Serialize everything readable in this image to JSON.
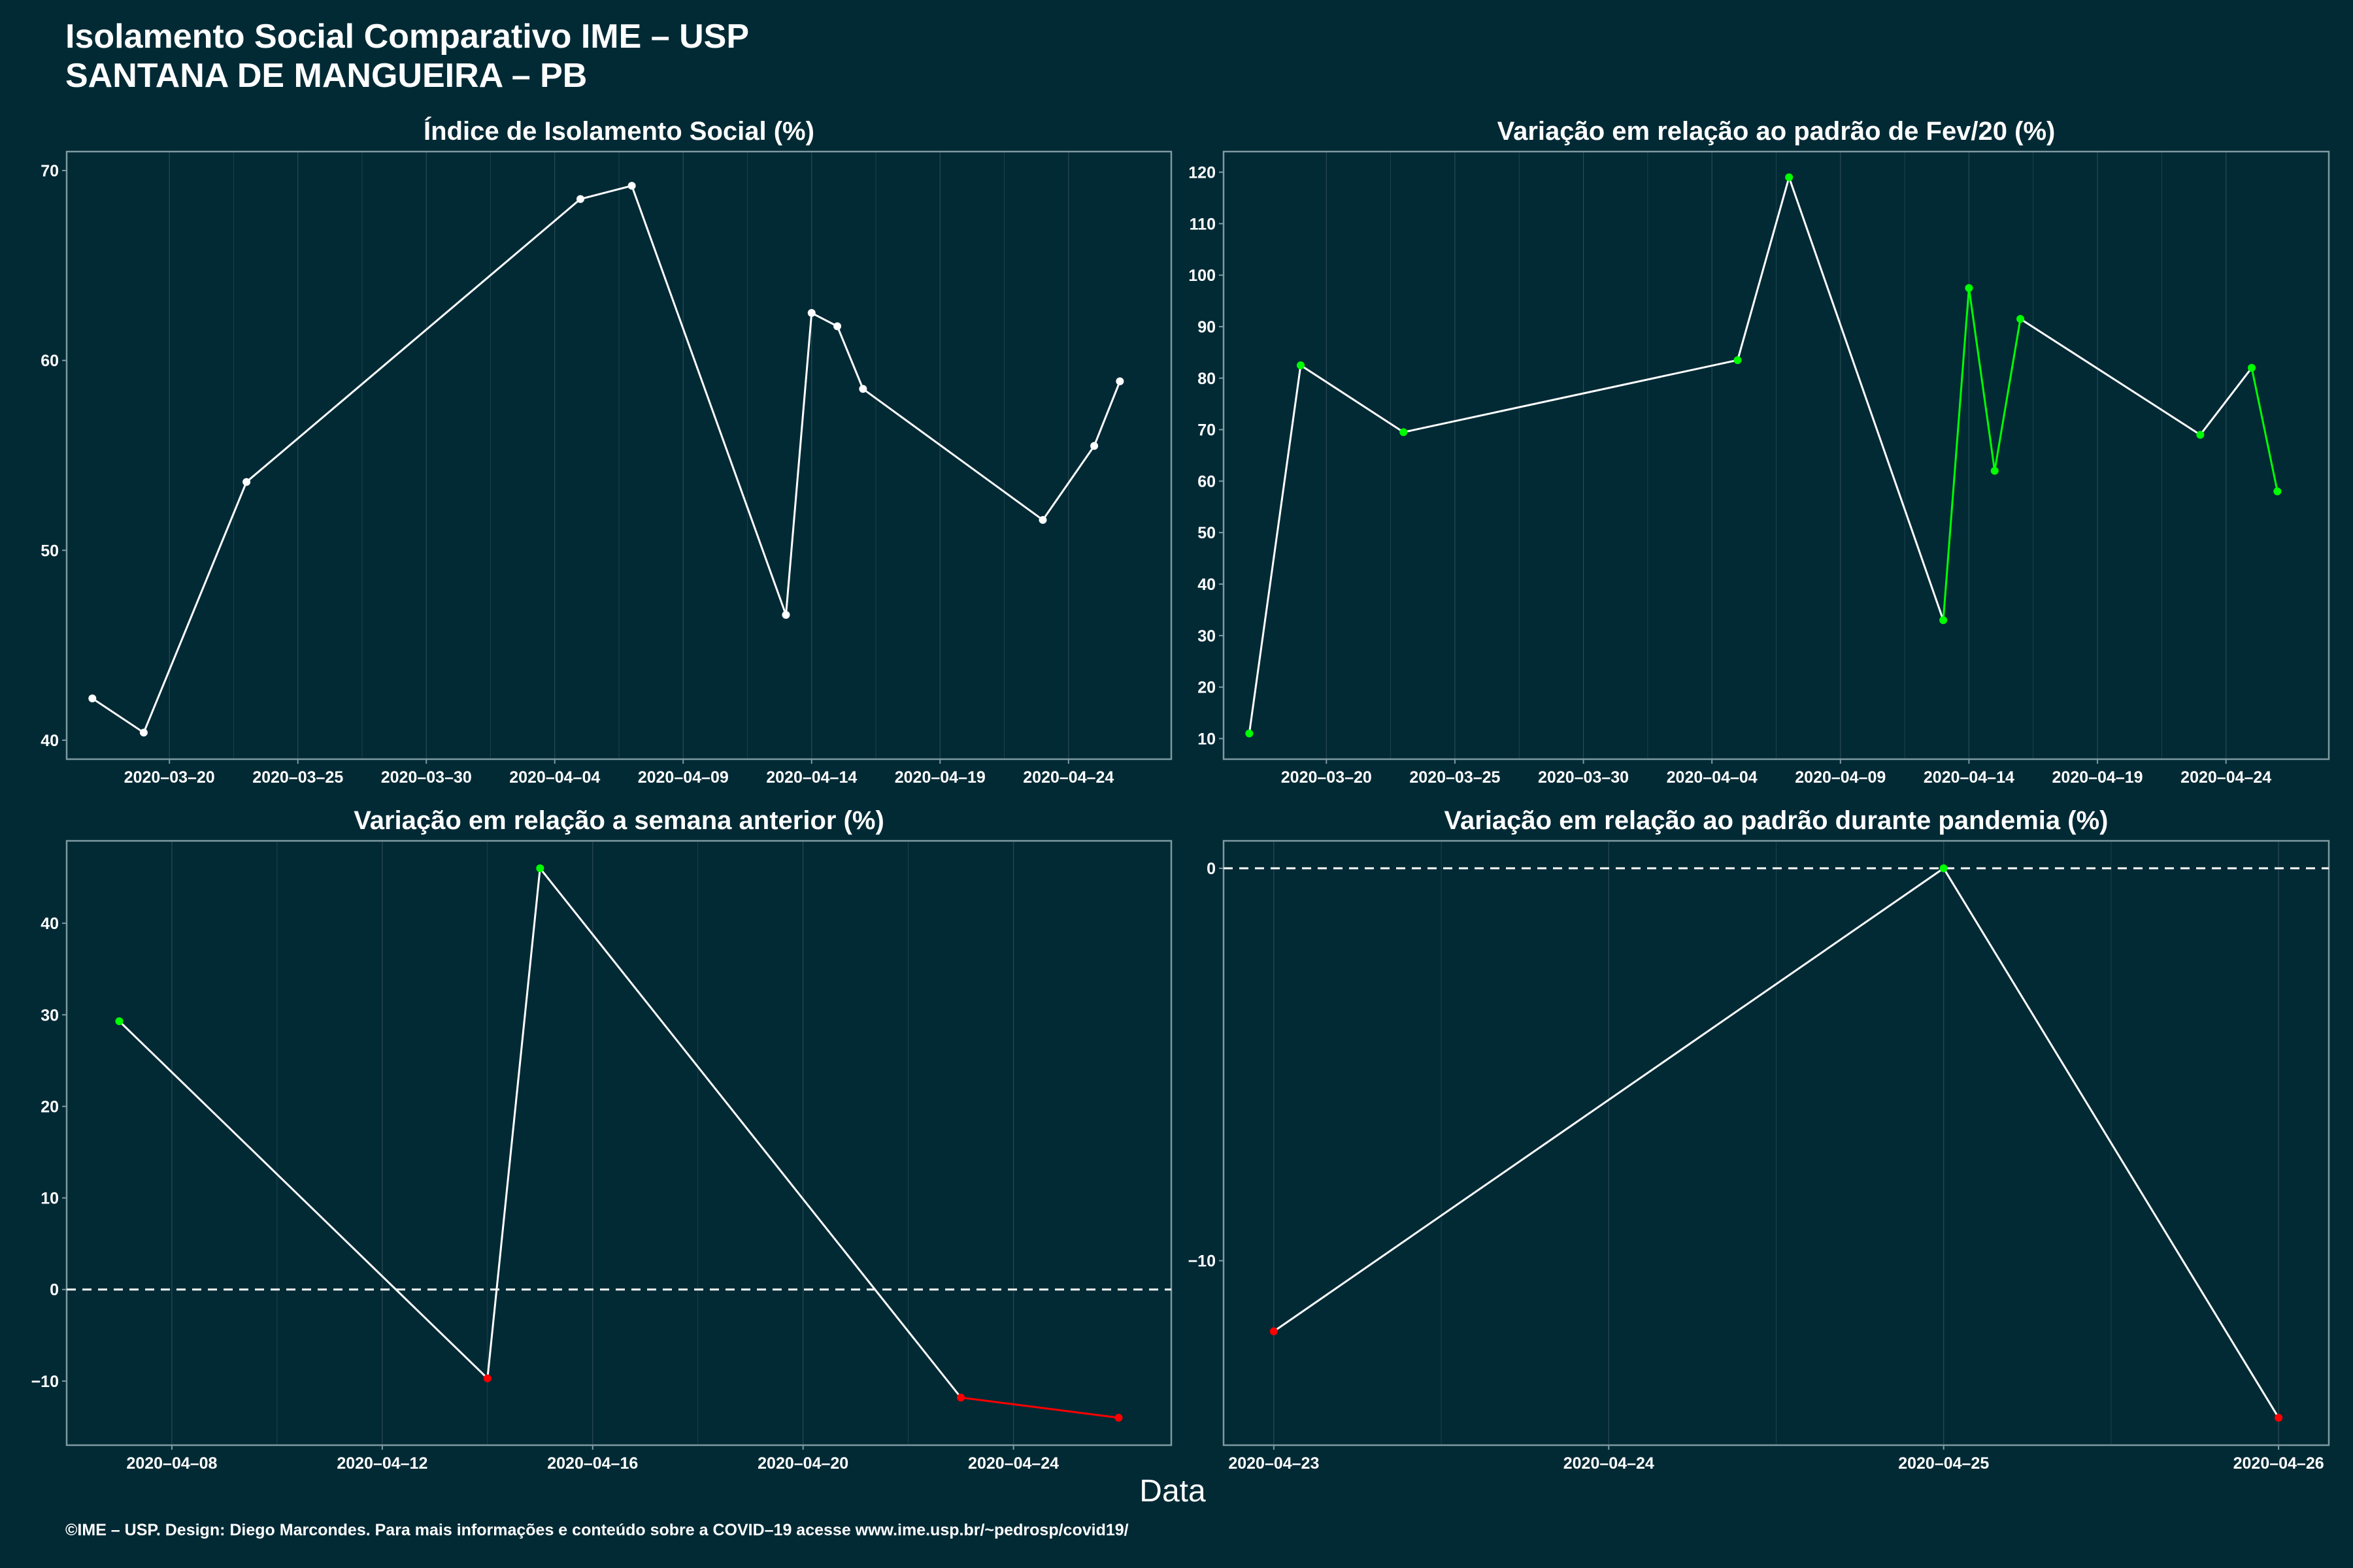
{
  "header": {
    "title_line1": "Isolamento Social Comparativo IME – USP",
    "title_line2": "SANTANA DE MANGUEIRA – PB"
  },
  "footer": {
    "credit": "©IME – USP. Design: Diego Marcondes. Para mais informações e conteúdo sobre a COVID–19 acesse www.ime.usp.br/~pedrosp/covid19/",
    "xlabel": "Data"
  },
  "colors": {
    "background": "#022a35",
    "line": "#ffffff",
    "up": "#00ff00",
    "down": "#ff0000",
    "frame": "#7f9aa1",
    "grid": "#2a4a55"
  },
  "chart_data": [
    {
      "type": "line",
      "title": "Índice de Isolamento Social (%)",
      "x": [
        "2020-03-17",
        "2020-03-19",
        "2020-03-23",
        "2020-04-05",
        "2020-04-07",
        "2020-04-13",
        "2020-04-14",
        "2020-04-15",
        "2020-04-16",
        "2020-04-23",
        "2020-04-25",
        "2020-04-26"
      ],
      "y": [
        42.2,
        40.4,
        53.6,
        68.5,
        69.2,
        46.6,
        62.5,
        61.8,
        58.5,
        51.6,
        55.5,
        58.9
      ],
      "ylim": [
        39,
        71
      ],
      "yticks": [
        40,
        50,
        60,
        70
      ],
      "xlim": [
        "2020-03-16",
        "2020-04-28"
      ],
      "xticks": [
        "2020-03-20",
        "2020-03-25",
        "2020-03-30",
        "2020-04-04",
        "2020-04-09",
        "2020-04-14",
        "2020-04-19",
        "2020-04-24"
      ],
      "point_color": "#ffffff",
      "dashed_zero": false
    },
    {
      "type": "line",
      "title": "Variação em relação ao padrão de Fev/20 (%)",
      "x": [
        "2020-03-17",
        "2020-03-19",
        "2020-03-23",
        "2020-04-05",
        "2020-04-07",
        "2020-04-13",
        "2020-04-14",
        "2020-04-15",
        "2020-04-16",
        "2020-04-23",
        "2020-04-25",
        "2020-04-26"
      ],
      "y": [
        11,
        82.5,
        69.5,
        83.5,
        119,
        33,
        97.5,
        62,
        91.5,
        69,
        82,
        58
      ],
      "ylim": [
        6,
        124
      ],
      "yticks": [
        10,
        20,
        30,
        40,
        50,
        60,
        70,
        80,
        90,
        100,
        110,
        120
      ],
      "xlim": [
        "2020-03-16",
        "2020-04-28"
      ],
      "xticks": [
        "2020-03-20",
        "2020-03-25",
        "2020-03-30",
        "2020-04-04",
        "2020-04-09",
        "2020-04-14",
        "2020-04-19",
        "2020-04-24"
      ],
      "point_color": "#00ff00",
      "dashed_zero": false
    },
    {
      "type": "line",
      "title": "Variação em relação a semana anterior (%)",
      "x": [
        "2020-04-07",
        "2020-04-14",
        "2020-04-15",
        "2020-04-23",
        "2020-04-26"
      ],
      "y": [
        29.3,
        -9.7,
        46,
        -11.8,
        -14
      ],
      "ylim": [
        -17,
        49
      ],
      "yticks": [
        -10,
        0,
        10,
        20,
        30,
        40
      ],
      "xlim": [
        "2020-04-06",
        "2020-04-27"
      ],
      "xticks": [
        "2020-04-08",
        "2020-04-12",
        "2020-04-16",
        "2020-04-20",
        "2020-04-24"
      ],
      "point_colors": [
        "#00ff00",
        "#ff0000",
        "#00ff00",
        "#ff0000",
        "#ff0000"
      ],
      "dashed_zero": true
    },
    {
      "type": "line",
      "title": "Variação em relação ao padrão durante pandemia (%)",
      "x": [
        "2020-04-23",
        "2020-04-25",
        "2020-04-26"
      ],
      "y": [
        -11.8,
        0,
        -14
      ],
      "ylim": [
        -14.7,
        0.7
      ],
      "yticks": [
        -10,
        0
      ],
      "xlim": [
        "2020-04-22.85",
        "2020-04-26.15"
      ],
      "xticks": [
        "2020-04-23",
        "2020-04-24",
        "2020-04-25",
        "2020-04-26"
      ],
      "point_colors": [
        "#ff0000",
        "#00ff00",
        "#ff0000"
      ],
      "dashed_zero": true
    }
  ]
}
